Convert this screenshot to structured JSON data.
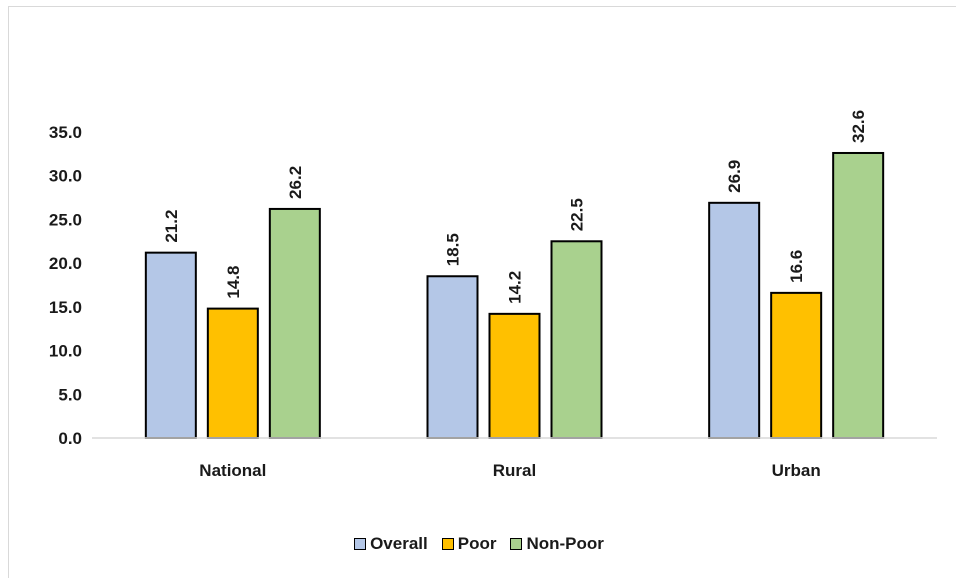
{
  "chart_data": {
    "type": "bar",
    "categories": [
      "National",
      "Rural",
      "Urban"
    ],
    "series": [
      {
        "name": "Overall",
        "values": [
          21.2,
          18.5,
          26.9
        ],
        "color": "#b4c7e7"
      },
      {
        "name": "Poor",
        "values": [
          14.8,
          14.2,
          16.6
        ],
        "color": "#ffc000"
      },
      {
        "name": "Non-Poor",
        "values": [
          26.2,
          22.5,
          32.6
        ],
        "color": "#a9d18e"
      }
    ],
    "ylim": [
      0,
      35
    ],
    "yticks": [
      "0.0",
      "5.0",
      "10.0",
      "15.0",
      "20.0",
      "25.0",
      "30.0",
      "35.0"
    ],
    "data_labels": [
      [
        "21.2",
        "18.5",
        "26.9"
      ],
      [
        "14.8",
        "14.2",
        "16.6"
      ],
      [
        "26.2",
        "22.5",
        "32.6"
      ]
    ],
    "grid": false,
    "legend_position": "bottom"
  }
}
